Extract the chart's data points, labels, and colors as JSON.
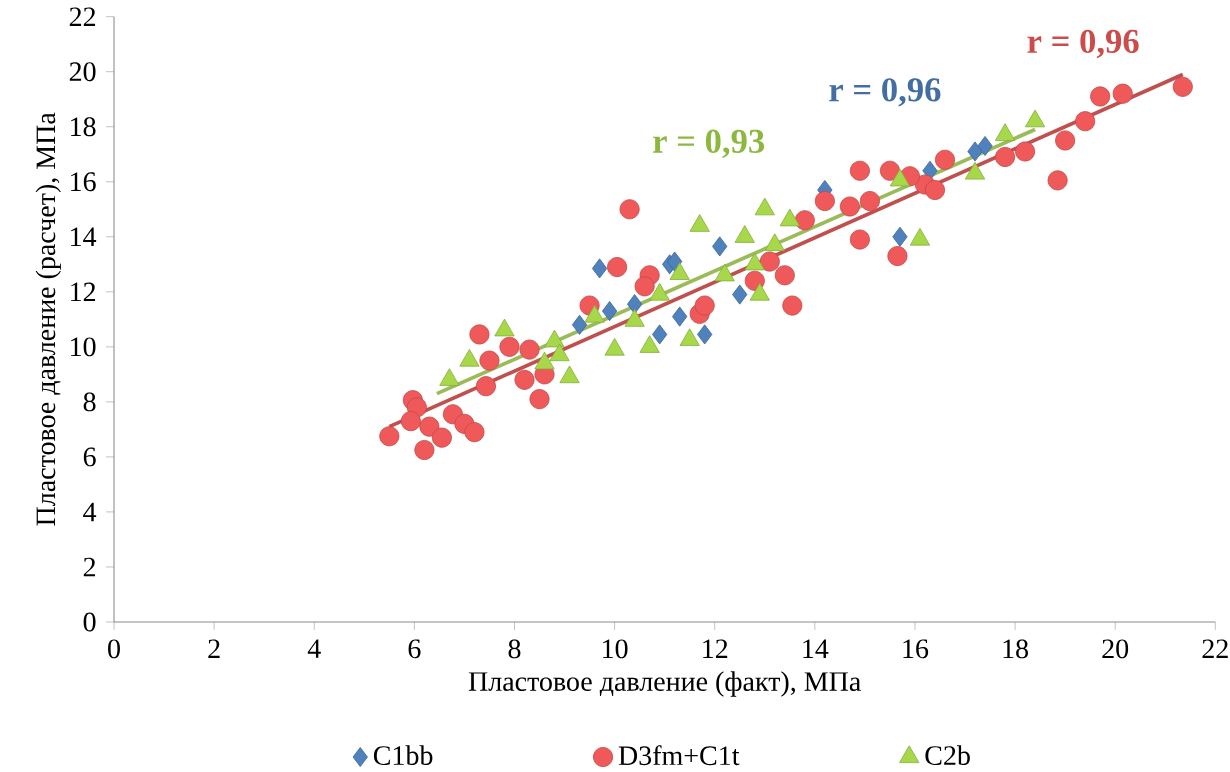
{
  "chart_data": {
    "type": "scatter",
    "xlabel": "Пластовое давление (факт), МПа",
    "ylabel": "Пластовое давление (расчет), МПа",
    "xlim": [
      0,
      22
    ],
    "ylim": [
      0,
      22
    ],
    "xticks": [
      0,
      2,
      4,
      6,
      8,
      10,
      12,
      14,
      16,
      18,
      20,
      22
    ],
    "yticks": [
      0,
      2,
      4,
      6,
      8,
      10,
      12,
      14,
      16,
      18,
      20,
      22
    ],
    "grid": false,
    "legend": "bottom",
    "annotations": [
      "r = 0,96",
      "r = 0,96",
      "r = 0,93"
    ],
    "series": [
      {
        "name": "C1bb",
        "color": "#4f81bd",
        "marker": "diamond",
        "x": [
          9.7,
          11.1,
          9.3,
          9.9,
          10.4,
          10.9,
          11.3,
          14.2,
          15.7,
          12.1,
          11.2,
          11.8,
          12.5,
          16.3,
          17.2,
          17.4
        ],
        "values": [
          12.85,
          13.0,
          10.8,
          11.3,
          11.55,
          10.45,
          11.1,
          15.7,
          14.0,
          13.65,
          13.1,
          10.45,
          11.9,
          16.4,
          17.1,
          17.3
        ]
      },
      {
        "name": "D3fm+C1t",
        "color": "#f0595a",
        "marker": "circle",
        "x": [
          5.5,
          5.97,
          6.05,
          5.93,
          6.3,
          6.2,
          6.55,
          6.77,
          7.0,
          7.2,
          7.43,
          8.2,
          8.5,
          8.6,
          10.3,
          10.05,
          10.7,
          10.6,
          7.3,
          7.9,
          8.3,
          7.5,
          9.5,
          11.7,
          11.8,
          14.9,
          15.5,
          16.2,
          14.7,
          15.1,
          14.9,
          15.65,
          13.4,
          13.1,
          13.55,
          12.8,
          13.8,
          14.2,
          21.35,
          20.15,
          19.7,
          19.4,
          19.0,
          18.85,
          18.2,
          17.8,
          16.6,
          16.4,
          15.9
        ],
        "values": [
          6.75,
          8.06,
          7.8,
          7.3,
          7.1,
          6.25,
          6.7,
          7.55,
          7.2,
          6.9,
          8.57,
          8.8,
          8.1,
          9.0,
          15.0,
          12.9,
          12.6,
          12.2,
          10.45,
          10.0,
          9.9,
          9.5,
          11.5,
          11.2,
          11.5,
          16.4,
          16.4,
          15.9,
          15.1,
          15.3,
          13.9,
          13.3,
          12.6,
          13.1,
          11.5,
          12.4,
          14.6,
          15.3,
          19.45,
          19.2,
          19.1,
          18.2,
          17.5,
          16.05,
          17.1,
          16.9,
          16.8,
          15.7,
          16.2
        ]
      },
      {
        "name": "C2b",
        "color": "#a6d84a",
        "marker": "triangle",
        "x": [
          6.7,
          11.7,
          7.1,
          7.8,
          8.8,
          8.9,
          9.1,
          8.6,
          9.6,
          10.0,
          10.7,
          11.3,
          11.5,
          10.9,
          10.4,
          13.0,
          13.5,
          12.6,
          13.2,
          12.9,
          16.1,
          15.7,
          12.2,
          12.8,
          18.4,
          17.8,
          17.2
        ],
        "values": [
          8.8,
          14.4,
          9.5,
          10.6,
          10.2,
          9.7,
          8.9,
          9.4,
          11.1,
          9.9,
          10.0,
          12.65,
          10.25,
          11.9,
          10.95,
          15.0,
          14.6,
          14.0,
          13.7,
          11.9,
          13.9,
          16.05,
          12.6,
          13.0,
          18.2,
          17.7,
          16.3
        ]
      },
      {
        "type": "line",
        "color": "#c0504d",
        "marker": "none",
        "x": [
          5.5,
          21.35
        ],
        "values": [
          7.1,
          19.9
        ]
      },
      {
        "type": "line",
        "color": "#9bbb59",
        "marker": "none",
        "x": [
          6.45,
          18.4
        ],
        "values": [
          8.3,
          17.9
        ]
      }
    ]
  }
}
